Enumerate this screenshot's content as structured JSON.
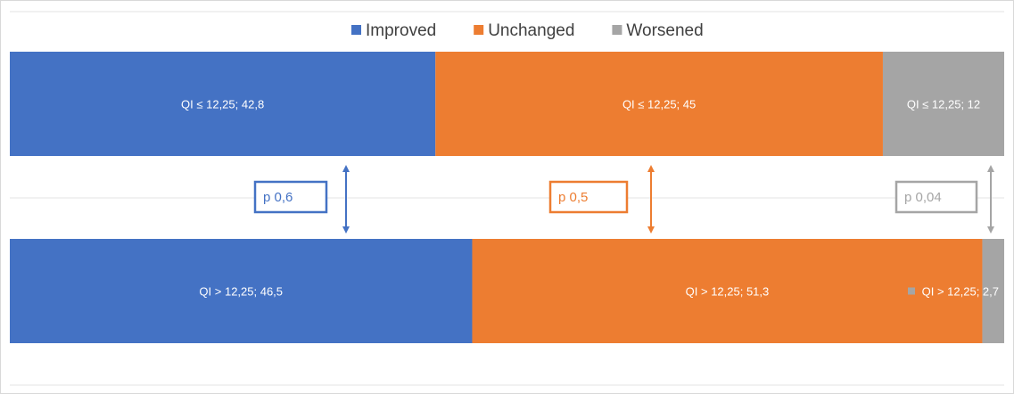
{
  "chart_data": {
    "type": "bar",
    "orientation": "horizontal",
    "stacked": true,
    "categories": [
      "QI ≤ 12,25",
      "QI > 12,25"
    ],
    "series": [
      {
        "name": "Improved",
        "color": "#4472c4",
        "values": [
          42.8,
          46.5
        ]
      },
      {
        "name": "Unchanged",
        "color": "#ed7d31",
        "values": [
          45,
          51.3
        ]
      },
      {
        "name": "Worsened",
        "color": "#a5a5a5",
        "values": [
          12,
          2.7
        ]
      }
    ],
    "data_labels": [
      [
        "QI ≤ 12,25; 42,8",
        "QI ≤ 12,25; 45",
        "QI ≤ 12,25; 12"
      ],
      [
        "QI > 12,25; 46,5",
        "QI > 12,25; 51,3",
        "QI > 12,25; 2,7"
      ]
    ],
    "annotations": [
      {
        "series": "Improved",
        "label": "p 0,6",
        "color": "#4472c4"
      },
      {
        "series": "Unchanged",
        "label": "p 0,5",
        "color": "#ed7d31"
      },
      {
        "series": "Worsened",
        "label": "p 0,04",
        "color": "#a5a5a5"
      }
    ],
    "title": "",
    "xlabel": "",
    "ylabel": "",
    "xlim": [
      0,
      100
    ],
    "legend": "top-center",
    "grid": true
  }
}
